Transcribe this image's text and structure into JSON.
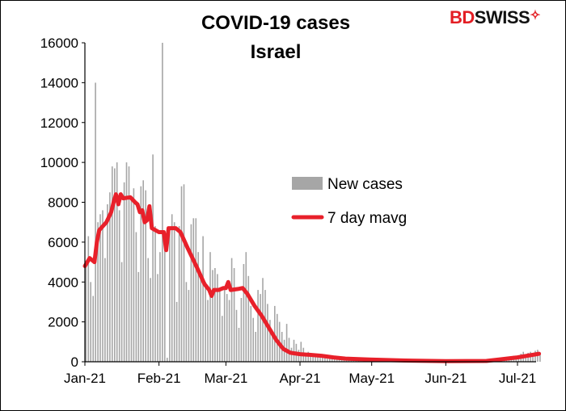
{
  "logo": {
    "part1": "BD",
    "part2": "SWISS",
    "colors": {
      "bd": "#e31e24",
      "swiss": "#111111"
    }
  },
  "chart_data": {
    "type": "bar+line",
    "title": "COVID-19 cases",
    "subtitle": "Israel",
    "xlabel": "",
    "ylabel": "",
    "ylim": [
      0,
      16000
    ],
    "yticks": [
      "0",
      "2000",
      "4000",
      "6000",
      "8000",
      "10000",
      "12000",
      "14000",
      "16000"
    ],
    "xticks": [
      "Jan-21",
      "Feb-21",
      "Mar-21",
      "Apr-21",
      "May-21",
      "Jun-21",
      "Jul-21"
    ],
    "grid": false,
    "legend": "center-right",
    "series": [
      {
        "name": "New cases",
        "type": "bar",
        "color": "#a6a6a6",
        "months": [
          {
            "month": "Jan-21",
            "daily": [
              5000,
              6300,
              4000,
              3300,
              14000,
              7000,
              7400,
              7600,
              5200,
              7900,
              8500,
              9800,
              9700,
              10000,
              7600,
              5000,
              9000,
              10000,
              9800,
              8100,
              8700,
              6500,
              4500,
              8800,
              9100,
              8600,
              5200,
              4200,
              10400,
              6800,
              4400
            ]
          },
          {
            "month": "Feb-21",
            "daily": [
              5500,
              16000,
              6000,
              200,
              6500,
              7400,
              7000,
              3000,
              6800,
              8800,
              8900,
              4000,
              3600,
              6900,
              7200,
              7200,
              5500,
              4300,
              6300,
              4000,
              3100,
              5500,
              4600,
              4700,
              4400,
              3600,
              2300,
              3600
            ]
          },
          {
            "month": "Mar-21",
            "daily": [
              3400,
              3100,
              5200,
              4700,
              2600,
              1700,
              3200,
              4900,
              5500,
              4300,
              2800,
              2200,
              1500,
              3600,
              3400,
              4200,
              3600,
              2900,
              2100,
              1500,
              2800,
              2400,
              2000,
              1500,
              1100,
              1900,
              1200,
              700,
              1100,
              900,
              600
            ]
          },
          {
            "month": "Apr-21",
            "daily": [
              1000,
              700,
              300,
              500,
              400,
              350,
              300,
              250,
              200,
              300,
              200,
              150,
              250,
              200,
              180,
              150,
              120,
              200,
              150,
              100,
              130,
              100,
              90,
              80,
              100,
              80,
              70,
              60,
              80,
              60
            ]
          },
          {
            "month": "May-21",
            "daily": [
              60,
              50,
              70,
              60,
              50,
              40,
              60,
              50,
              40,
              50,
              45,
              40,
              50,
              40,
              35,
              40,
              30,
              40,
              35,
              30,
              30,
              25,
              30,
              25,
              20,
              25,
              20,
              20,
              25,
              20,
              15
            ]
          },
          {
            "month": "Jun-21",
            "daily": [
              15,
              20,
              15,
              10,
              15,
              10,
              15,
              20,
              15,
              10,
              15,
              20,
              15,
              20,
              25,
              20,
              30,
              40,
              60,
              80,
              100,
              120,
              150,
              180,
              200,
              150,
              250,
              200,
              300,
              250
            ]
          },
          {
            "month": "Jul-21",
            "daily": [
              300,
              400,
              500,
              350,
              450,
              500,
              400,
              550,
              600,
              450
            ]
          }
        ]
      },
      {
        "name": "7 day mavg",
        "type": "line",
        "color": "#e8202a",
        "points": [
          [
            "2021-01-01",
            4800
          ],
          [
            "2021-01-03",
            5200
          ],
          [
            "2021-01-05",
            5000
          ],
          [
            "2021-01-06",
            6000
          ],
          [
            "2021-01-07",
            6600
          ],
          [
            "2021-01-10",
            7000
          ],
          [
            "2021-01-12",
            7500
          ],
          [
            "2021-01-13",
            8000
          ],
          [
            "2021-01-14",
            8400
          ],
          [
            "2021-01-15",
            7900
          ],
          [
            "2021-01-16",
            8400
          ],
          [
            "2021-01-17",
            8200
          ],
          [
            "2021-01-20",
            8250
          ],
          [
            "2021-01-22",
            8000
          ],
          [
            "2021-01-23",
            7900
          ],
          [
            "2021-01-24",
            7500
          ],
          [
            "2021-01-25",
            7600
          ],
          [
            "2021-01-26",
            7000
          ],
          [
            "2021-01-27",
            7100
          ],
          [
            "2021-01-28",
            7800
          ],
          [
            "2021-01-29",
            6700
          ],
          [
            "2021-02-01",
            6500
          ],
          [
            "2021-02-03",
            6500
          ],
          [
            "2021-02-04",
            5600
          ],
          [
            "2021-02-05",
            6700
          ],
          [
            "2021-02-08",
            6700
          ],
          [
            "2021-02-10",
            6500
          ],
          [
            "2021-02-13",
            5700
          ],
          [
            "2021-02-15",
            5200
          ],
          [
            "2021-02-17",
            4700
          ],
          [
            "2021-02-20",
            3900
          ],
          [
            "2021-02-22",
            3600
          ],
          [
            "2021-02-23",
            3300
          ],
          [
            "2021-02-24",
            3600
          ],
          [
            "2021-02-26",
            3600
          ],
          [
            "2021-02-28",
            3700
          ],
          [
            "2021-03-01",
            3700
          ],
          [
            "2021-03-02",
            4000
          ],
          [
            "2021-03-03",
            3600
          ],
          [
            "2021-03-06",
            3650
          ],
          [
            "2021-03-08",
            3700
          ],
          [
            "2021-03-10",
            3400
          ],
          [
            "2021-03-13",
            2800
          ],
          [
            "2021-03-16",
            2300
          ],
          [
            "2021-03-19",
            1700
          ],
          [
            "2021-03-22",
            1100
          ],
          [
            "2021-03-25",
            650
          ],
          [
            "2021-03-28",
            450
          ],
          [
            "2021-04-01",
            380
          ],
          [
            "2021-04-05",
            350
          ],
          [
            "2021-04-10",
            300
          ],
          [
            "2021-04-15",
            220
          ],
          [
            "2021-04-20",
            160
          ],
          [
            "2021-04-30",
            110
          ],
          [
            "2021-05-15",
            60
          ],
          [
            "2021-06-01",
            30
          ],
          [
            "2021-06-18",
            40
          ],
          [
            "2021-06-24",
            120
          ],
          [
            "2021-07-01",
            220
          ],
          [
            "2021-07-05",
            300
          ],
          [
            "2021-07-10",
            400
          ]
        ]
      }
    ]
  }
}
